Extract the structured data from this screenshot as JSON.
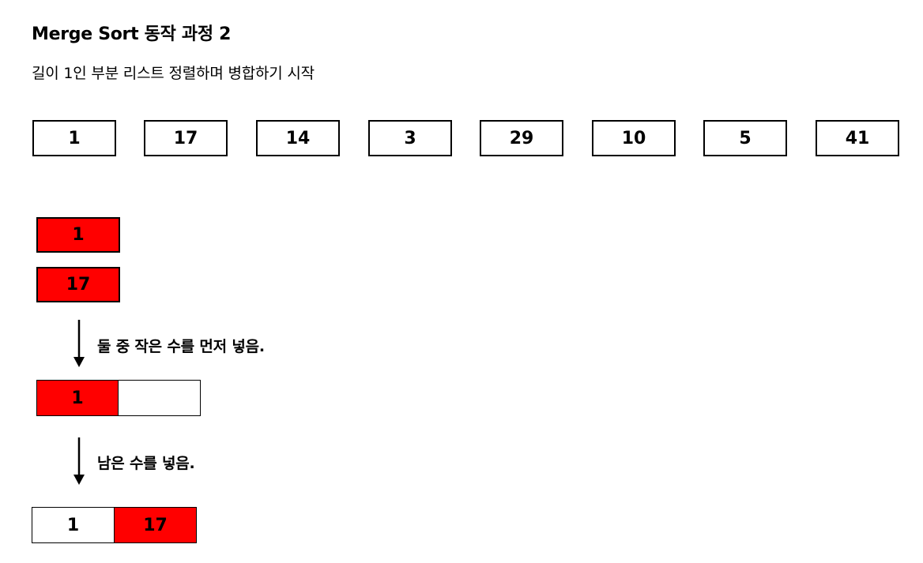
{
  "title": "Merge Sort 동작 과정 2",
  "subtitle": "길이 1인 부분 리스트 정렬하며 병합하기 시작",
  "array": [
    "1",
    "17",
    "14",
    "3",
    "29",
    "10",
    "5",
    "41"
  ],
  "sublists": {
    "left": "1",
    "right": "17"
  },
  "step1": {
    "label": "둘 중 작은 수를 먼저 넣음.",
    "cells": [
      "1",
      ""
    ]
  },
  "step2": {
    "label": "남은 수를 넣음.",
    "cells": [
      "1",
      "17"
    ]
  },
  "colors": {
    "highlight": "#ff0000",
    "border": "#000000",
    "background": "#ffffff"
  }
}
